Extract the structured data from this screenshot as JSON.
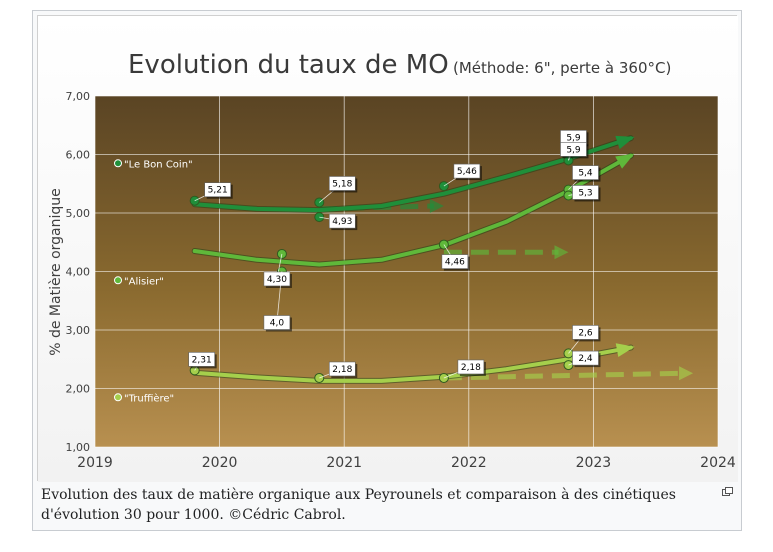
{
  "chart_data": {
    "type": "scatter",
    "title": "Evolution du taux de MO",
    "subtitle": "(Méthode: 6\", perte à 360°C)",
    "xlabel": "",
    "ylabel": "% de Matière organique",
    "xlim": [
      2019,
      2024
    ],
    "ylim": [
      1.0,
      7.0
    ],
    "x_ticks": [
      "2019",
      "2020",
      "2021",
      "2022",
      "2023",
      "2024"
    ],
    "y_ticks": [
      "1,00",
      "2,00",
      "3,00",
      "4,00",
      "5,00",
      "6,00",
      "7,00"
    ],
    "grid": true,
    "series": [
      {
        "name": "\"Le Bon Coin\"",
        "color": "#1f8f3a",
        "points": [
          {
            "x": 2019.8,
            "y": 5.21,
            "label": "5,21"
          },
          {
            "x": 2020.8,
            "y": 5.18,
            "label": "5,18"
          },
          {
            "x": 2020.8,
            "y": 4.93,
            "label": "4,93"
          },
          {
            "x": 2021.8,
            "y": 5.46,
            "label": "5,46"
          },
          {
            "x": 2022.8,
            "y": 5.9,
            "label": "5,9"
          },
          {
            "x": 2022.8,
            "y": 5.9,
            "label": "5,9"
          }
        ],
        "trend": [
          [
            2019.8,
            5.15
          ],
          [
            2020.3,
            5.07
          ],
          [
            2020.8,
            5.05
          ],
          [
            2021.3,
            5.12
          ],
          [
            2021.8,
            5.33
          ],
          [
            2022.3,
            5.62
          ],
          [
            2022.8,
            5.93
          ],
          [
            2023.3,
            6.28
          ]
        ],
        "cinetique": [
          [
            2020.8,
            5.07
          ],
          [
            2021.8,
            5.12
          ]
        ]
      },
      {
        "name": "\"Alisier\"",
        "color": "#5fb83a",
        "points": [
          {
            "x": 2020.5,
            "y": 4.3,
            "label": "4,30"
          },
          {
            "x": 2020.5,
            "y": 4.0,
            "label": "4,0"
          },
          {
            "x": 2021.8,
            "y": 4.46,
            "label": "4,46"
          },
          {
            "x": 2022.8,
            "y": 5.4,
            "label": "5,4"
          },
          {
            "x": 2022.8,
            "y": 5.3,
            "label": "5,3"
          }
        ],
        "trend": [
          [
            2019.8,
            4.35
          ],
          [
            2020.3,
            4.2
          ],
          [
            2020.8,
            4.12
          ],
          [
            2021.3,
            4.2
          ],
          [
            2021.8,
            4.45
          ],
          [
            2022.3,
            4.85
          ],
          [
            2022.8,
            5.38
          ],
          [
            2023.3,
            5.98
          ]
        ],
        "cinetique": [
          [
            2021.8,
            4.33
          ],
          [
            2022.8,
            4.33
          ]
        ]
      },
      {
        "name": "\"Truffière\"",
        "color": "#a5cf4c",
        "points": [
          {
            "x": 2019.8,
            "y": 2.31,
            "label": "2,31"
          },
          {
            "x": 2020.8,
            "y": 2.18,
            "label": "2,18"
          },
          {
            "x": 2021.8,
            "y": 2.18,
            "label": "2,18"
          },
          {
            "x": 2022.8,
            "y": 2.6,
            "label": "2,6"
          },
          {
            "x": 2022.8,
            "y": 2.4,
            "label": "2,4"
          }
        ],
        "trend": [
          [
            2019.8,
            2.27
          ],
          [
            2020.3,
            2.19
          ],
          [
            2020.8,
            2.13
          ],
          [
            2021.3,
            2.13
          ],
          [
            2021.8,
            2.2
          ],
          [
            2022.3,
            2.33
          ],
          [
            2022.8,
            2.5
          ],
          [
            2023.3,
            2.7
          ]
        ],
        "cinetique": [
          [
            2021.8,
            2.18
          ],
          [
            2023.8,
            2.26
          ]
        ]
      }
    ]
  },
  "caption": "Evolution des taux de matière organique aux Peyrounels et comparaison à des cinétiques d'évolution 30 pour 1000. ©Cédric Cabrol.",
  "icons": {
    "magnify": "magnify-icon"
  }
}
